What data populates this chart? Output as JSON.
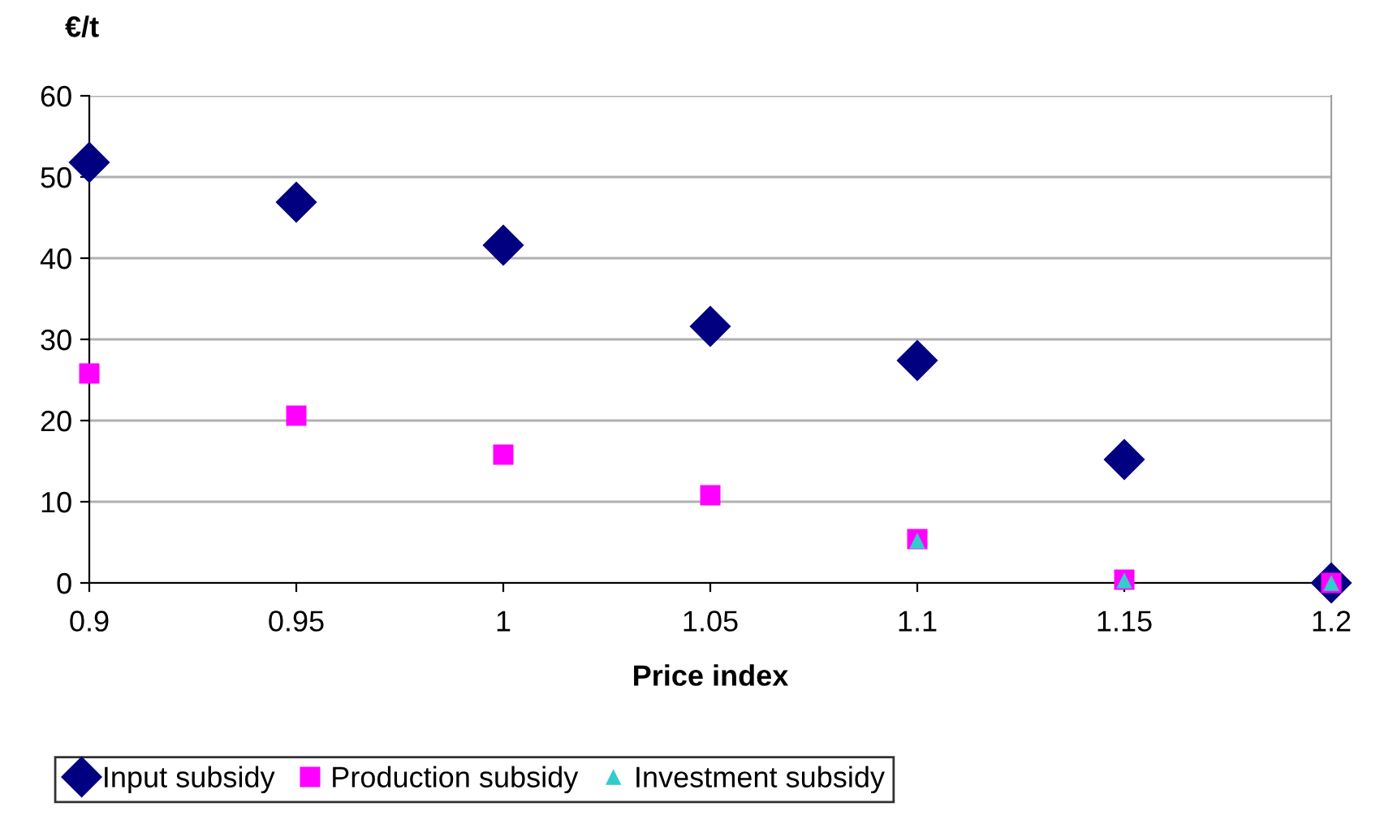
{
  "chart_data": {
    "type": "scatter",
    "ylabel": "€/t",
    "xlabel": "Price index",
    "x": [
      0.9,
      0.95,
      1.0,
      1.05,
      1.1,
      1.15,
      1.2
    ],
    "series": [
      {
        "name": "Input subsidy",
        "color": "#000080",
        "marker": "diamond",
        "values": [
          51.8,
          46.9,
          41.6,
          31.6,
          27.4,
          15.2,
          0
        ]
      },
      {
        "name": "Production subsidy",
        "color": "#ff00ff",
        "marker": "square",
        "values": [
          25.8,
          20.6,
          15.8,
          10.8,
          5.4,
          0.4,
          0
        ]
      },
      {
        "name": "Investment subsidy",
        "color": "#33cccc",
        "marker": "triangle",
        "values": [
          null,
          null,
          null,
          null,
          5.2,
          0.3,
          0
        ]
      }
    ],
    "xlim": [
      0.9,
      1.2
    ],
    "xticks": [
      0.9,
      0.95,
      1,
      1.05,
      1.1,
      1.15,
      1.2
    ],
    "ylim": [
      0,
      60
    ],
    "yticks": [
      0,
      10,
      20,
      30,
      40,
      50,
      60
    ],
    "grid": "y",
    "legend": "bottom"
  }
}
